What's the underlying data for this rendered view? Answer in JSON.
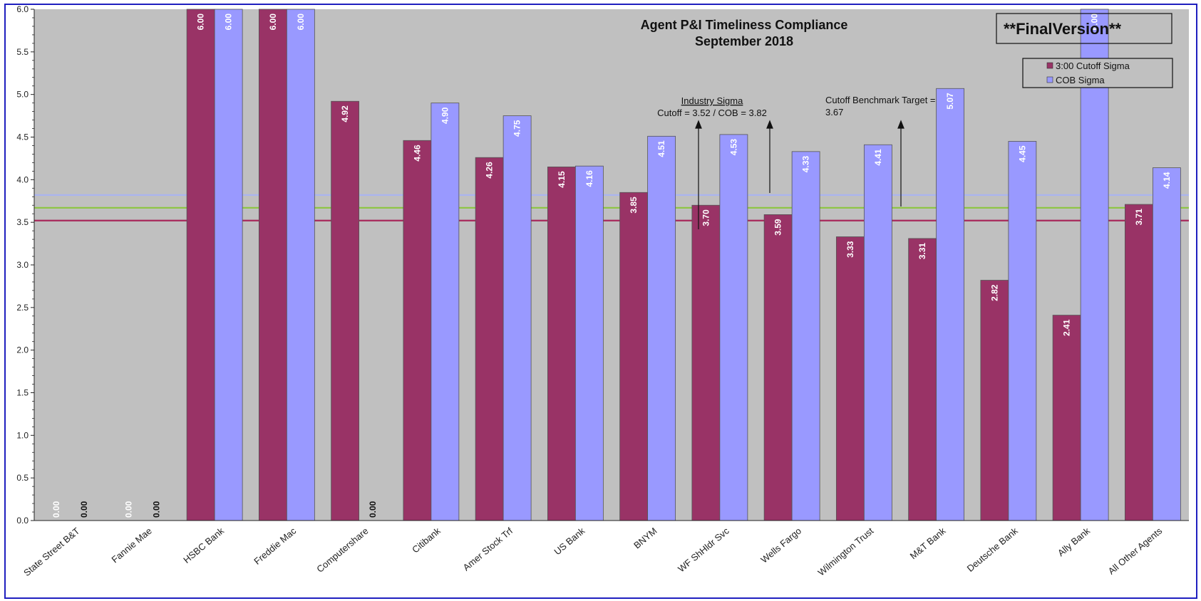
{
  "chart_data": {
    "type": "bar",
    "title": "Agent P&I Timeliness Compliance",
    "subtitle": "September 2018",
    "stamp": "**FinalVersion**",
    "categories": [
      "State Street B&T",
      "Fannie Mae",
      "HSBC Bank",
      "Freddie Mac",
      "Computershare",
      "Citibank",
      "Amer Stock Trf",
      "US Bank",
      "BNYM",
      "WF ShHldr Svc",
      "Wells Fargo",
      "Wilmington Trust",
      "M&T Bank",
      "Deutsche Bank",
      "Ally Bank",
      "All Other Agents"
    ],
    "series": [
      {
        "name": "3:00 Cutoff Sigma",
        "color": "#993366",
        "values": [
          0.0,
          0.0,
          6.0,
          6.0,
          4.92,
          4.46,
          4.26,
          4.15,
          3.85,
          3.7,
          3.59,
          3.33,
          3.31,
          2.82,
          2.41,
          3.71
        ],
        "labels": [
          "0.00",
          "0.00",
          "6.00",
          "6.00",
          "4.92",
          "4.46",
          "4.26",
          "4.15",
          "3.85",
          "3.70",
          "3.59",
          "3.33",
          "3.31",
          "2.82",
          "2.41",
          "3.71"
        ]
      },
      {
        "name": "COB Sigma",
        "color": "#9999ff",
        "values": [
          0.0,
          0.0,
          6.0,
          6.0,
          0.0,
          4.9,
          4.75,
          4.16,
          4.51,
          4.53,
          4.33,
          4.41,
          5.07,
          4.45,
          6.0,
          4.14
        ],
        "labels": [
          "0.00",
          "0.00",
          "6.00",
          "6.00",
          "0.00",
          "4.90",
          "4.75",
          "4.16",
          "4.51",
          "4.53",
          "4.33",
          "4.41",
          "5.07",
          "4.45",
          "6.00",
          "4.14"
        ]
      }
    ],
    "ylim": [
      0,
      6
    ],
    "yticks": [
      "0.0",
      "0.5",
      "1.0",
      "1.5",
      "2.0",
      "2.5",
      "3.0",
      "3.5",
      "4.0",
      "4.5",
      "5.0",
      "5.5",
      "6.0"
    ],
    "reference_lines": [
      {
        "value": 3.82,
        "color": "#aab4f0"
      },
      {
        "value": 3.67,
        "color": "#8cc63f"
      },
      {
        "value": 3.52,
        "color": "#a8285a"
      }
    ],
    "annotations": {
      "industry_title": "Industry Sigma",
      "industry_text": "Cutoff = 3.52 / COB = 3.82",
      "benchmark_line1": "Cutoff Benchmark Target =",
      "benchmark_line2": "3.67"
    },
    "legend_position": "top-right",
    "plot_bg": "#c0c0c0",
    "grid": false
  }
}
